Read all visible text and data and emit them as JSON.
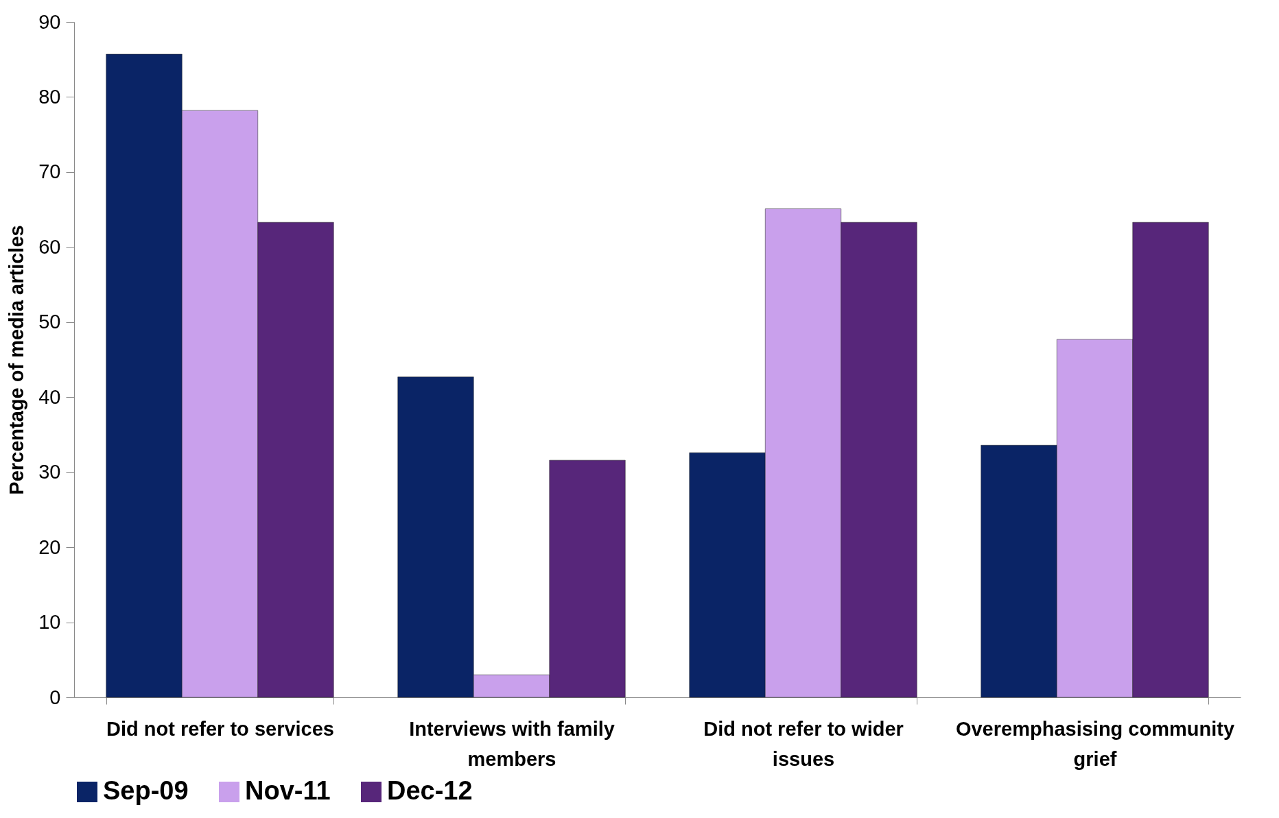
{
  "chart_data": {
    "type": "bar",
    "ylabel": "Percentage of media articles",
    "categories": [
      "Did not refer to services",
      "Interviews with family members",
      "Did not refer to wider issues",
      "Overemphasising community grief"
    ],
    "series": [
      {
        "name": "Sep-09",
        "color": "#0a2466",
        "values": [
          85.7,
          42.7,
          32.6,
          33.6
        ]
      },
      {
        "name": "Nov-11",
        "color": "#c9a0ec",
        "values": [
          78.2,
          3.0,
          65.1,
          47.7
        ]
      },
      {
        "name": "Dec-12",
        "color": "#57267a",
        "values": [
          63.3,
          31.6,
          63.3,
          63.3
        ]
      }
    ],
    "ylim": [
      0,
      90
    ],
    "yticks": [
      0,
      10,
      20,
      30,
      40,
      50,
      60,
      70,
      80,
      90
    ],
    "grid": false,
    "legend": "bottom"
  }
}
